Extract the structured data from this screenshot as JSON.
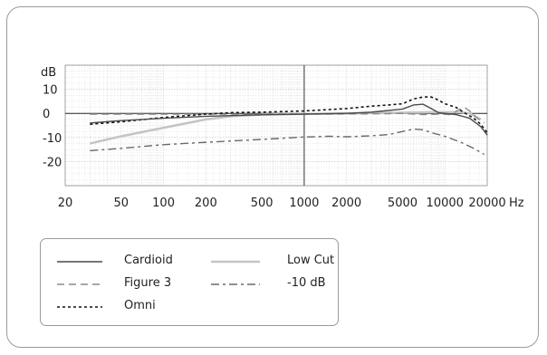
{
  "chart_data": {
    "type": "line",
    "ylabel": "dB",
    "xunit": "Hz",
    "xscale": "log",
    "xlim": [
      20,
      20000
    ],
    "ylim": [
      -30,
      20
    ],
    "grid": true,
    "x_ticks": [
      20,
      50,
      100,
      200,
      500,
      1000,
      2000,
      5000,
      10000,
      20000
    ],
    "x_tick_labels": [
      "20",
      "50",
      "100",
      "200",
      "500",
      "1000",
      "2000",
      "5000",
      "10000",
      "20000"
    ],
    "y_ticks": [
      10,
      0,
      -10,
      -20
    ],
    "y_tick_labels": [
      "10",
      "0",
      "-10",
      "-20"
    ],
    "legend_position": "bottom-left",
    "series": [
      {
        "name": "Cardioid",
        "color": "#4a4a4a",
        "style": "solid",
        "width": 1.4,
        "points": [
          [
            30,
            -4
          ],
          [
            50,
            -3
          ],
          [
            100,
            -2
          ],
          [
            200,
            -1.2
          ],
          [
            500,
            -0.6
          ],
          [
            1000,
            -0.3
          ],
          [
            2000,
            0
          ],
          [
            3000,
            0.5
          ],
          [
            5000,
            1.8
          ],
          [
            6000,
            3.5
          ],
          [
            7000,
            3.8
          ],
          [
            8000,
            2
          ],
          [
            9000,
            0.3
          ],
          [
            10000,
            0
          ],
          [
            12000,
            -0.5
          ],
          [
            15000,
            -2
          ],
          [
            18000,
            -5.5
          ],
          [
            20000,
            -9
          ]
        ]
      },
      {
        "name": "Low Cut",
        "color": "#c4c4c4",
        "style": "solid",
        "width": 2.5,
        "points": [
          [
            30,
            -12.5
          ],
          [
            50,
            -9.5
          ],
          [
            100,
            -6
          ],
          [
            200,
            -2.5
          ],
          [
            300,
            -1.2
          ],
          [
            500,
            -0.5
          ],
          [
            1000,
            -0.2
          ],
          [
            2000,
            0
          ],
          [
            5000,
            0.3
          ],
          [
            8000,
            0.5
          ],
          [
            10000,
            0.5
          ],
          [
            13000,
            0.5
          ],
          [
            15000,
            0
          ],
          [
            18000,
            -2.5
          ]
        ]
      },
      {
        "name": "Figure 3",
        "color": "#8a8a8a",
        "style": "dashed",
        "width": 1.4,
        "points": [
          [
            30,
            -0.3
          ],
          [
            100,
            -0.3
          ],
          [
            300,
            -0.3
          ],
          [
            1000,
            -0.3
          ],
          [
            3000,
            -0.2
          ],
          [
            5000,
            0
          ],
          [
            7000,
            -0.5
          ],
          [
            9000,
            -0.3
          ],
          [
            11000,
            -0.5
          ],
          [
            13000,
            2
          ],
          [
            14000,
            2.2
          ],
          [
            15000,
            1
          ],
          [
            17000,
            -2
          ],
          [
            19000,
            -4
          ]
        ]
      },
      {
        "name": "-10 dB",
        "color": "#6a6a6a",
        "style": "dashdot",
        "width": 1.4,
        "points": [
          [
            30,
            -15.5
          ],
          [
            50,
            -14.5
          ],
          [
            100,
            -13
          ],
          [
            200,
            -12
          ],
          [
            500,
            -10.8
          ],
          [
            1000,
            -9.8
          ],
          [
            1500,
            -9.5
          ],
          [
            2000,
            -9.7
          ],
          [
            3000,
            -9.3
          ],
          [
            4000,
            -8.8
          ],
          [
            5000,
            -7.5
          ],
          [
            6000,
            -6.5
          ],
          [
            7000,
            -6.8
          ],
          [
            8000,
            -8
          ],
          [
            10000,
            -9.5
          ],
          [
            13000,
            -12
          ],
          [
            16000,
            -14.5
          ],
          [
            19000,
            -17
          ]
        ]
      },
      {
        "name": "Omni",
        "color": "#111111",
        "style": "dotted",
        "width": 1.6,
        "points": [
          [
            30,
            -4.5
          ],
          [
            50,
            -3.5
          ],
          [
            100,
            -1.7
          ],
          [
            200,
            -0.3
          ],
          [
            300,
            0.3
          ],
          [
            500,
            0.5
          ],
          [
            1000,
            1
          ],
          [
            2000,
            2
          ],
          [
            3000,
            3
          ],
          [
            4000,
            3.5
          ],
          [
            5000,
            4
          ],
          [
            6000,
            6
          ],
          [
            7000,
            6.8
          ],
          [
            8000,
            6.8
          ],
          [
            9000,
            5.5
          ],
          [
            10000,
            4
          ],
          [
            12000,
            2.5
          ],
          [
            14000,
            0
          ],
          [
            16000,
            -2
          ],
          [
            18000,
            -4.5
          ],
          [
            20000,
            -8
          ]
        ]
      }
    ]
  }
}
